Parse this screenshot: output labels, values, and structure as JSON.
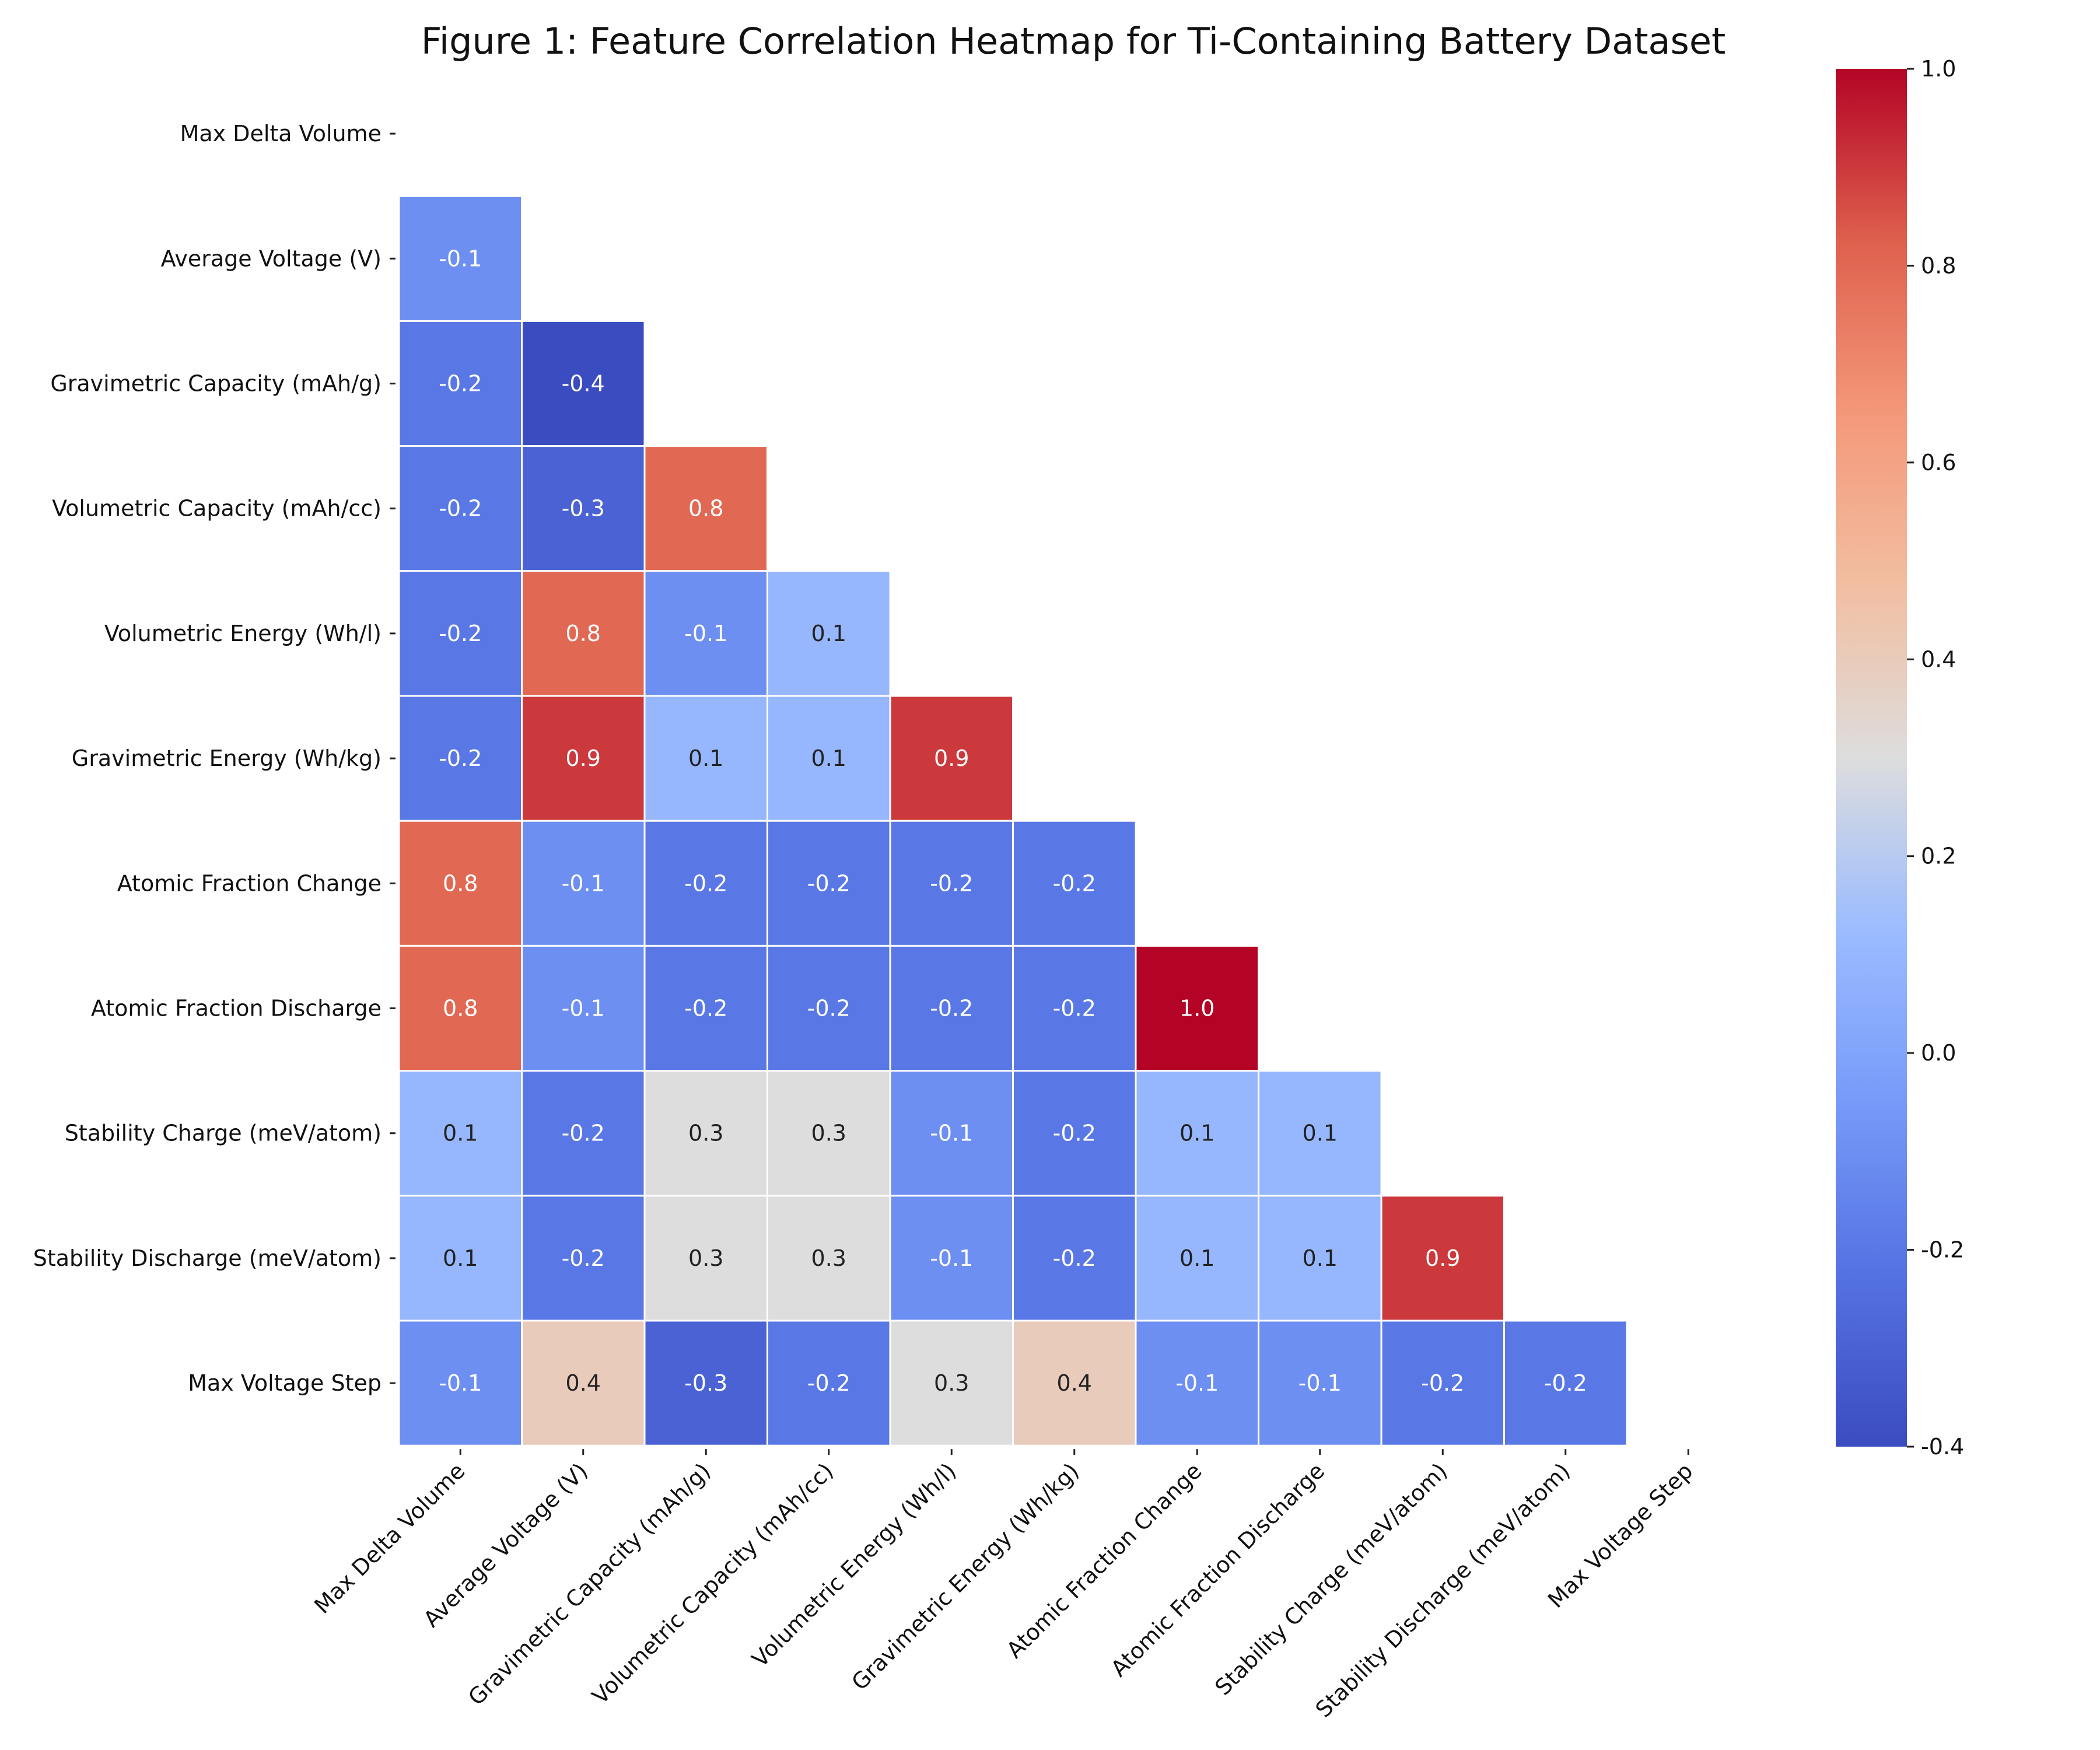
{
  "chart_data": {
    "type": "heatmap",
    "title": "Figure 1: Feature Correlation Heatmap for Ti-Containing Battery Dataset",
    "labels": [
      "Max Delta Volume",
      "Average Voltage (V)",
      "Gravimetric Capacity (mAh/g)",
      "Volumetric Capacity (mAh/cc)",
      "Volumetric Energy (Wh/l)",
      "Gravimetric Energy (Wh/kg)",
      "Atomic Fraction Change",
      "Atomic Fraction Discharge",
      "Stability Charge (meV/atom)",
      "Stability Discharge (meV/atom)",
      "Max Voltage Step"
    ],
    "mask": "lower-triangle",
    "values": [
      [
        null,
        null,
        null,
        null,
        null,
        null,
        null,
        null,
        null,
        null,
        null
      ],
      [
        -0.1,
        null,
        null,
        null,
        null,
        null,
        null,
        null,
        null,
        null,
        null
      ],
      [
        -0.2,
        -0.4,
        null,
        null,
        null,
        null,
        null,
        null,
        null,
        null,
        null
      ],
      [
        -0.2,
        -0.3,
        0.8,
        null,
        null,
        null,
        null,
        null,
        null,
        null,
        null
      ],
      [
        -0.2,
        0.8,
        -0.1,
        0.1,
        null,
        null,
        null,
        null,
        null,
        null,
        null
      ],
      [
        -0.2,
        0.9,
        0.1,
        0.1,
        0.9,
        null,
        null,
        null,
        null,
        null,
        null
      ],
      [
        0.8,
        -0.1,
        -0.2,
        -0.2,
        -0.2,
        -0.2,
        null,
        null,
        null,
        null,
        null
      ],
      [
        0.8,
        -0.1,
        -0.2,
        -0.2,
        -0.2,
        -0.2,
        1.0,
        null,
        null,
        null,
        null
      ],
      [
        0.1,
        -0.2,
        0.3,
        0.3,
        -0.1,
        -0.2,
        0.1,
        0.1,
        null,
        null,
        null
      ],
      [
        0.1,
        -0.2,
        0.3,
        0.3,
        -0.1,
        -0.2,
        0.1,
        0.1,
        0.9,
        null,
        null
      ],
      [
        -0.1,
        0.4,
        -0.3,
        -0.2,
        0.3,
        0.4,
        -0.1,
        -0.1,
        -0.2,
        -0.2,
        null
      ]
    ],
    "colormap": "coolwarm",
    "vmin": -0.4,
    "vmax": 1.0,
    "colorbar_ticks": [
      "1.0",
      "0.8",
      "0.6",
      "0.4",
      "0.2",
      "0.0",
      "-0.2",
      "-0.4"
    ],
    "grid_line_color": "#ffffff"
  }
}
